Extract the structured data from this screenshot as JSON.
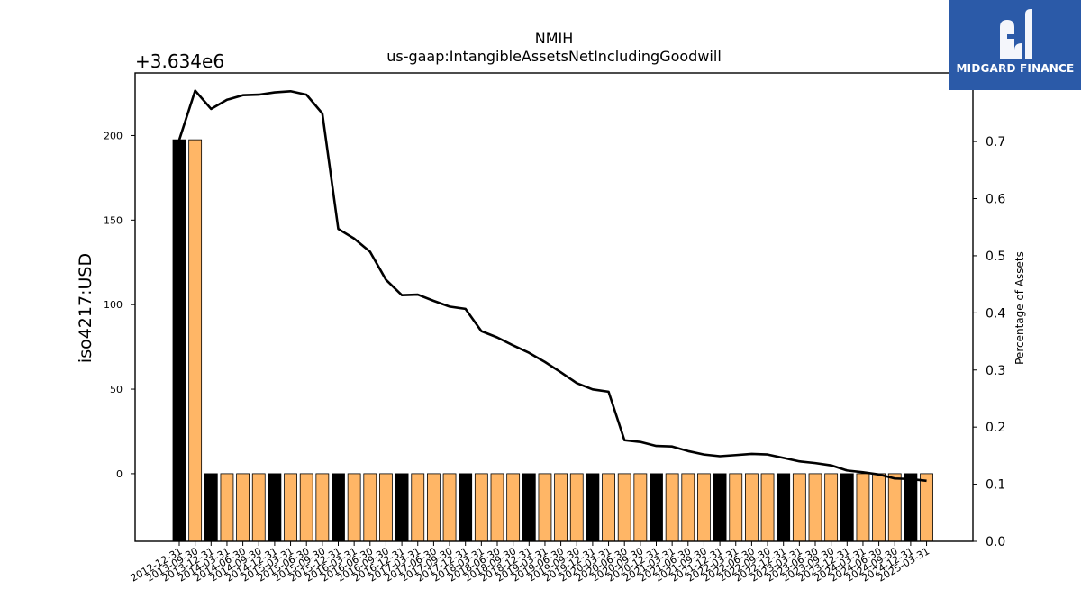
{
  "chart_data": {
    "type": "bar",
    "title": "NMIH",
    "subtitle": "us-gaap:IntangibleAssetsNetIncludingGoodwill",
    "ylabel": "iso4217:USD",
    "ylabel_right": "Percentage of Assets",
    "y_offset_label": "+3.634e6",
    "ylim": [
      -40,
      237
    ],
    "yticks": [
      0,
      50,
      100,
      150,
      200
    ],
    "ylim_right": [
      0.0,
      0.82
    ],
    "yticks_right": [
      "0.0",
      "0.1",
      "0.2",
      "0.3",
      "0.4",
      "0.5",
      "0.6",
      "0.7"
    ],
    "colors": {
      "annual": "#000000",
      "quarterly": "#ffb666",
      "line": "#000000"
    },
    "categories": [
      "2012-12-31",
      "2013-09-30",
      "2013-12-31",
      "2014-03-31",
      "2014-06-30",
      "2014-09-30",
      "2014-12-31",
      "2015-03-31",
      "2015-06-30",
      "2015-09-30",
      "2015-12-31",
      "2016-03-31",
      "2016-06-30",
      "2016-09-30",
      "2016-12-31",
      "2017-03-31",
      "2017-06-30",
      "2017-09-30",
      "2017-12-31",
      "2018-03-31",
      "2018-06-30",
      "2018-09-30",
      "2018-12-31",
      "2019-03-31",
      "2019-06-30",
      "2019-09-30",
      "2019-12-31",
      "2020-03-31",
      "2020-06-30",
      "2020-09-30",
      "2020-12-31",
      "2021-03-31",
      "2021-06-30",
      "2021-09-30",
      "2021-12-31",
      "2022-03-31",
      "2022-06-30",
      "2022-09-30",
      "2022-12-31",
      "2023-03-31",
      "2023-06-30",
      "2023-09-30",
      "2023-12-31",
      "2024-03-31",
      "2024-06-30",
      "2024-09-30",
      "2024-12-31",
      "2025-03-31"
    ],
    "values": [
      197.5,
      197.5,
      0,
      0,
      0,
      0,
      0,
      0,
      0,
      0,
      0,
      0,
      0,
      0,
      0,
      0,
      0,
      0,
      0,
      0,
      0,
      0,
      0,
      0,
      0,
      0,
      0,
      0,
      0,
      0,
      0,
      0,
      0,
      0,
      0,
      0,
      0,
      0,
      0,
      0,
      0,
      0,
      0,
      0,
      0,
      0,
      0,
      0
    ],
    "annual": [
      true,
      false,
      true,
      false,
      false,
      false,
      true,
      false,
      false,
      false,
      true,
      false,
      false,
      false,
      true,
      false,
      false,
      false,
      true,
      false,
      false,
      false,
      true,
      false,
      false,
      false,
      true,
      false,
      false,
      false,
      true,
      false,
      false,
      false,
      true,
      false,
      false,
      false,
      true,
      false,
      false,
      false,
      true,
      false,
      false,
      false,
      true,
      false
    ],
    "series_right": {
      "values": [
        0.703,
        0.789,
        0.757,
        0.773,
        0.781,
        0.782,
        0.786,
        0.788,
        0.782,
        0.749,
        0.547,
        0.53,
        0.507,
        0.458,
        0.431,
        0.432,
        0.421,
        0.411,
        0.407,
        0.368,
        0.357,
        0.343,
        0.33,
        0.314,
        0.296,
        0.277,
        0.266,
        0.262,
        0.177,
        0.174,
        0.167,
        0.166,
        0.158,
        0.152,
        0.149,
        0.151,
        0.153,
        0.152,
        0.146,
        0.14,
        0.137,
        0.133,
        0.124,
        0.121,
        0.117,
        0.11,
        0.109,
        0.106
      ]
    }
  }
}
